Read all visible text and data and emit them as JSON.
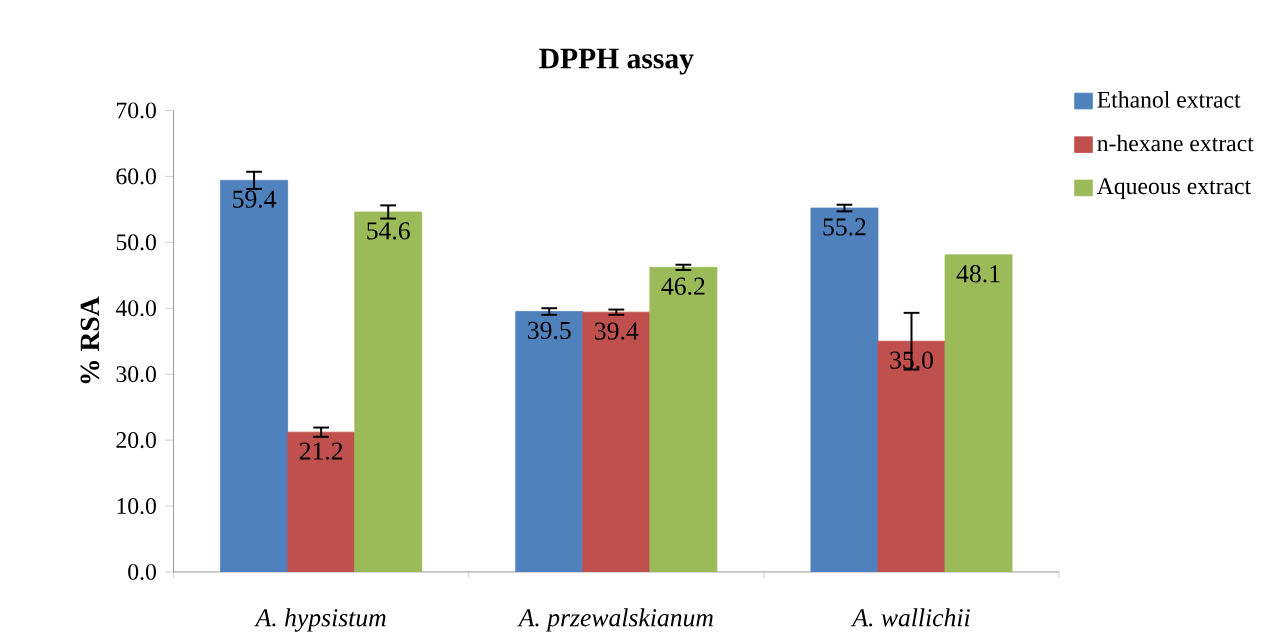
{
  "chart_data": {
    "type": "bar",
    "title": "DPPH assay",
    "ylabel": "% RSA",
    "categories": [
      "A. hypsistum",
      "A. przewalskianum",
      "A. wallichii"
    ],
    "series": [
      {
        "name": "Ethanol extract",
        "color": "#4f81bd",
        "values": [
          59.4,
          39.5,
          55.2
        ],
        "value_labels": [
          "59.4",
          "39.5",
          "55.2"
        ],
        "errors": [
          1.3,
          0.5,
          0.5
        ]
      },
      {
        "name": "n-hexane extract",
        "color": "#c0504d",
        "values": [
          21.2,
          39.4,
          35.0
        ],
        "value_labels": [
          "21.2",
          "39.4",
          "35.0"
        ],
        "errors": [
          0.7,
          0.4,
          4.3
        ]
      },
      {
        "name": "Aqueous extract",
        "color": "#9bbb59",
        "values": [
          54.6,
          46.2,
          48.1
        ],
        "value_labels": [
          "54.6",
          "46.2",
          "48.1"
        ],
        "errors": [
          1.0,
          0.4,
          null
        ]
      }
    ],
    "ylim": [
      0,
      70
    ],
    "yticks": [
      {
        "value": 0,
        "label": "0.0"
      },
      {
        "value": 10,
        "label": "10.0"
      },
      {
        "value": 20,
        "label": "20.0"
      },
      {
        "value": 30,
        "label": "30.0"
      },
      {
        "value": 40,
        "label": "40.0"
      },
      {
        "value": 50,
        "label": "50.0"
      },
      {
        "value": 60,
        "label": "60.0"
      },
      {
        "value": 70,
        "label": "70.0"
      }
    ],
    "legend": "top right"
  }
}
